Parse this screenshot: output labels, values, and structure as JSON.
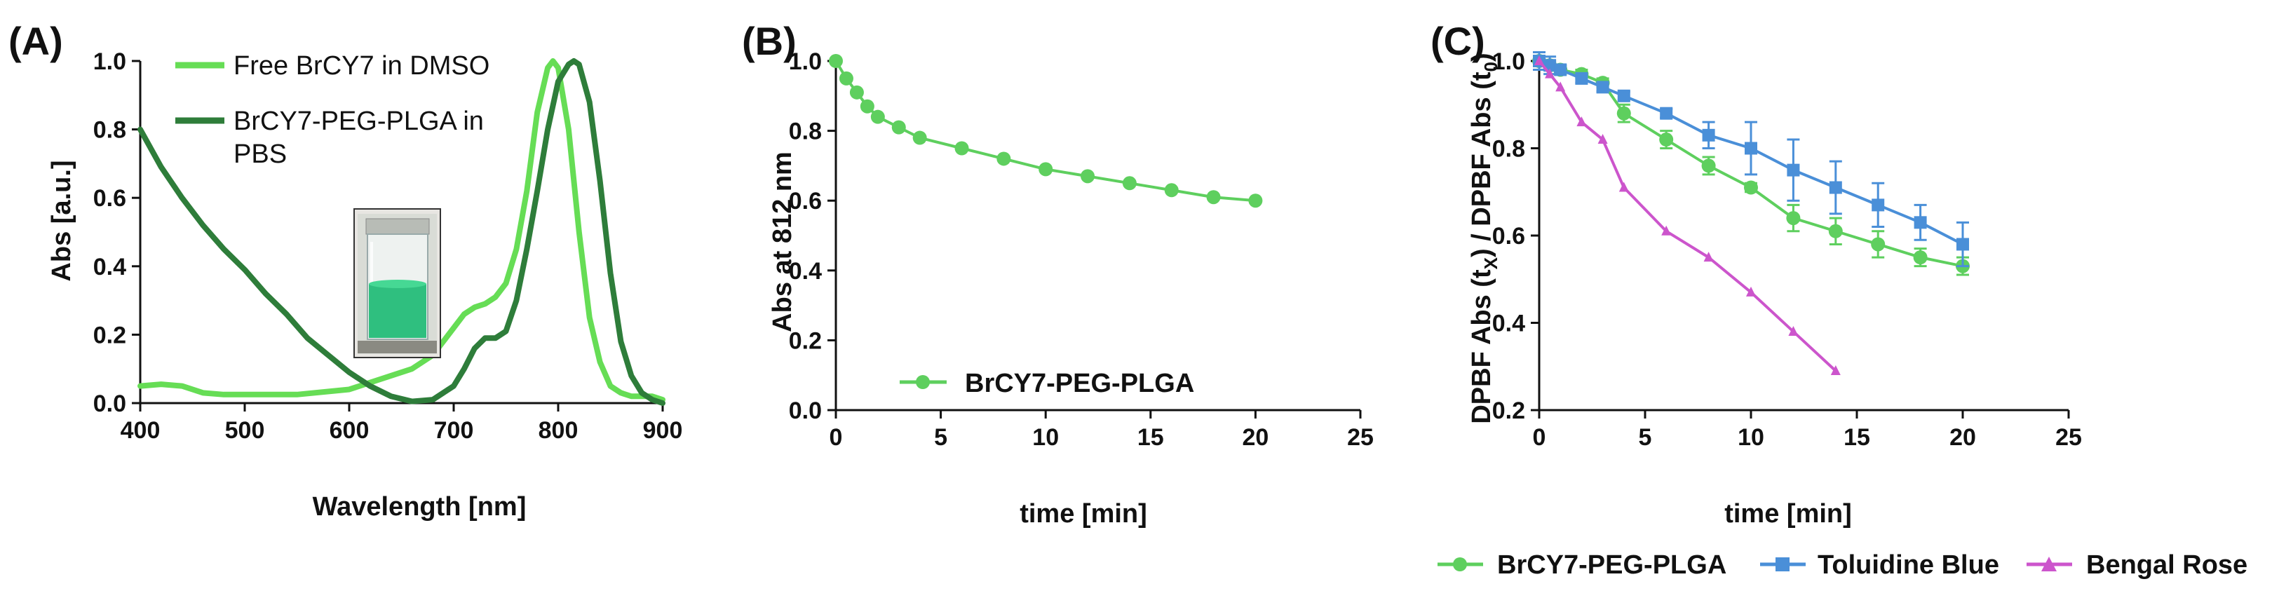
{
  "panels": {
    "a": {
      "label": "(A)"
    },
    "b": {
      "label": "(B)"
    },
    "c": {
      "label": "(C)"
    }
  },
  "colors": {
    "light_green": "#66dd55",
    "dark_green": "#2e7d3a",
    "marker_green": "#5ecf5e",
    "blue": "#4a8fd8",
    "magenta": "#cc55cc",
    "vial_liquid": "#2fbf7f"
  },
  "chart_data": [
    {
      "type": "line",
      "panel": "A",
      "xlabel": "Wavelength [nm]",
      "ylabel": "Abs [a.u.]",
      "xlim": [
        400,
        900
      ],
      "ylim": [
        0,
        1.0
      ],
      "xticks": [
        "400",
        "500",
        "600",
        "700",
        "800",
        "900"
      ],
      "yticks": [
        "0.0",
        "0.2",
        "0.4",
        "0.6",
        "0.8",
        "1.0"
      ],
      "legend_position": "top-left",
      "inset": "photo of vial with green solution",
      "series": [
        {
          "name": "Free BrCY7 in DMSO",
          "color": "#66dd55",
          "x": [
            400,
            420,
            440,
            460,
            480,
            500,
            550,
            600,
            620,
            640,
            660,
            680,
            700,
            710,
            720,
            730,
            740,
            750,
            760,
            770,
            780,
            790,
            795,
            800,
            810,
            820,
            830,
            840,
            850,
            860,
            870,
            880,
            890,
            900
          ],
          "y": [
            0.05,
            0.055,
            0.05,
            0.03,
            0.025,
            0.025,
            0.025,
            0.04,
            0.06,
            0.08,
            0.1,
            0.14,
            0.22,
            0.26,
            0.28,
            0.29,
            0.31,
            0.35,
            0.45,
            0.62,
            0.85,
            0.98,
            1.0,
            0.98,
            0.8,
            0.5,
            0.25,
            0.12,
            0.05,
            0.03,
            0.02,
            0.02,
            0.02,
            0.01
          ]
        },
        {
          "name": "BrCY7-PEG-PLGA in PBS",
          "color": "#2e7d3a",
          "x": [
            400,
            420,
            440,
            460,
            480,
            500,
            520,
            540,
            560,
            580,
            600,
            620,
            640,
            660,
            680,
            700,
            710,
            720,
            730,
            740,
            750,
            760,
            770,
            780,
            790,
            800,
            810,
            815,
            820,
            830,
            840,
            850,
            860,
            870,
            880,
            890,
            900
          ],
          "y": [
            0.8,
            0.69,
            0.6,
            0.52,
            0.45,
            0.39,
            0.32,
            0.26,
            0.19,
            0.14,
            0.09,
            0.05,
            0.02,
            0.005,
            0.01,
            0.05,
            0.1,
            0.16,
            0.19,
            0.19,
            0.21,
            0.3,
            0.45,
            0.62,
            0.8,
            0.94,
            0.99,
            1.0,
            0.99,
            0.88,
            0.65,
            0.38,
            0.18,
            0.08,
            0.03,
            0.01,
            0.0
          ]
        }
      ]
    },
    {
      "type": "line",
      "panel": "B",
      "xlabel": "time [min]",
      "ylabel": "Abs at 812 nm",
      "xlim": [
        0,
        25
      ],
      "ylim": [
        0,
        1.0
      ],
      "xticks": [
        "0",
        "5",
        "10",
        "15",
        "20",
        "25"
      ],
      "yticks": [
        "0.0",
        "0.2",
        "0.4",
        "0.6",
        "0.8",
        "1.0"
      ],
      "legend_position": "bottom-left",
      "series": [
        {
          "name": "BrCY7-PEG-PLGA",
          "color": "#5ecf5e",
          "x": [
            0,
            0.5,
            1,
            1.5,
            2,
            3,
            4,
            6,
            8,
            10,
            12,
            14,
            16,
            18,
            20
          ],
          "y": [
            1.0,
            0.95,
            0.91,
            0.87,
            0.84,
            0.81,
            0.78,
            0.75,
            0.72,
            0.69,
            0.67,
            0.65,
            0.63,
            0.61,
            0.6
          ]
        }
      ]
    },
    {
      "type": "line",
      "panel": "C",
      "xlabel": "time [min]",
      "ylabel_main": "DPBF Abs (t",
      "ylabel_sub1": "X",
      "ylabel_mid": ") / DPBF Abs (t",
      "ylabel_sub2": "0",
      "ylabel_end": ")",
      "xlim": [
        0,
        25
      ],
      "ylim": [
        0.2,
        1.0
      ],
      "xticks": [
        "0",
        "5",
        "10",
        "15",
        "20",
        "25"
      ],
      "yticks": [
        "0.2",
        "0.4",
        "0.6",
        "0.8",
        "1.0"
      ],
      "legend_position": "bottom",
      "series": [
        {
          "name": "BrCY7-PEG-PLGA",
          "color": "#5ecf5e",
          "marker": "circle",
          "x": [
            0,
            0.5,
            1,
            2,
            3,
            4,
            6,
            8,
            10,
            12,
            14,
            16,
            18,
            20
          ],
          "y": [
            1.0,
            0.99,
            0.98,
            0.97,
            0.95,
            0.88,
            0.82,
            0.76,
            0.71,
            0.64,
            0.61,
            0.58,
            0.55,
            0.53
          ],
          "err": [
            0.01,
            0.01,
            0.01,
            0.01,
            0.01,
            0.02,
            0.02,
            0.02,
            0.01,
            0.03,
            0.03,
            0.03,
            0.02,
            0.02
          ]
        },
        {
          "name": "Toluidine Blue",
          "color": "#4a8fd8",
          "marker": "square",
          "x": [
            0,
            0.5,
            1,
            2,
            3,
            4,
            6,
            8,
            10,
            12,
            14,
            16,
            18,
            20
          ],
          "y": [
            1.0,
            0.99,
            0.98,
            0.96,
            0.94,
            0.92,
            0.88,
            0.83,
            0.8,
            0.75,
            0.71,
            0.67,
            0.63,
            0.58
          ],
          "err": [
            0.02,
            0.02,
            0.01,
            0.01,
            0.01,
            0.01,
            0.01,
            0.03,
            0.06,
            0.07,
            0.06,
            0.05,
            0.04,
            0.05
          ]
        },
        {
          "name": "Bengal Rose",
          "color": "#cc55cc",
          "marker": "triangle",
          "x": [
            0,
            0.5,
            1,
            2,
            3,
            4,
            6,
            8,
            10,
            12,
            14
          ],
          "y": [
            1.0,
            0.97,
            0.94,
            0.86,
            0.82,
            0.71,
            0.61,
            0.55,
            0.47,
            0.38,
            0.29
          ],
          "err": [
            0,
            0,
            0,
            0,
            0,
            0,
            0,
            0,
            0,
            0,
            0
          ]
        }
      ]
    }
  ]
}
